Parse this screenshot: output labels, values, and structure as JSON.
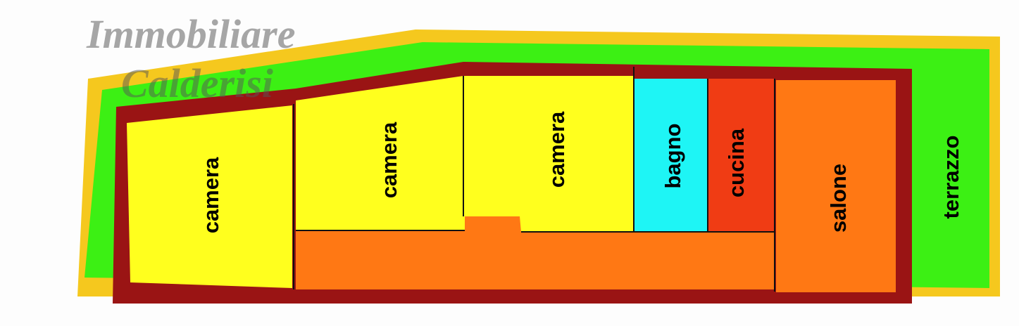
{
  "watermark": {
    "line1": "Immobiliare",
    "line2": "Calderisi"
  },
  "rooms": [
    {
      "label": "camera",
      "color": "#ffff1e"
    },
    {
      "label": "camera",
      "color": "#ffff1e"
    },
    {
      "label": "camera",
      "color": "#ffff1e"
    },
    {
      "label": "bagno",
      "color": "#1ef5f5"
    },
    {
      "label": "cucina",
      "color": "#f03c14"
    },
    {
      "label": "salone",
      "color": "#ff7814"
    },
    {
      "label": "terrazzo",
      "color": "#3cf014"
    }
  ],
  "colors": {
    "border": "#f5c81e",
    "terrace": "#3cf014",
    "walls": "#9a1414",
    "corridor": "#ff7814"
  }
}
